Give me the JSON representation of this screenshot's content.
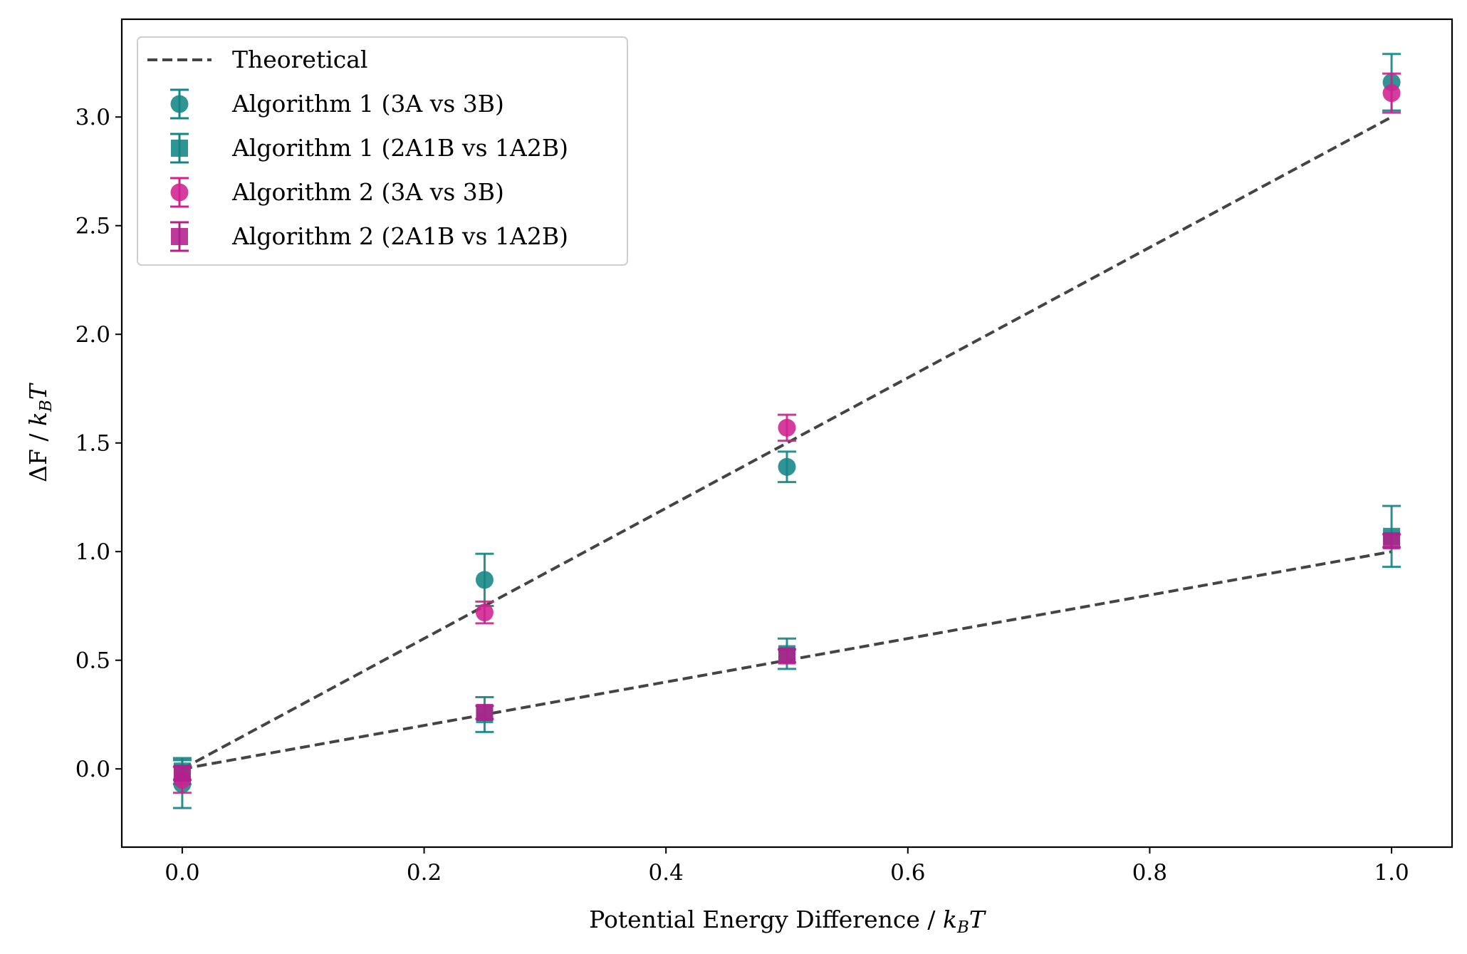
{
  "chart_data": {
    "type": "scatter",
    "xlabel": "Potential Energy Difference / k_B T",
    "ylabel": "ΔF / k_B T",
    "xlim": [
      -0.05,
      1.05
    ],
    "ylim": [
      -0.36,
      3.45
    ],
    "xticks": [
      "0.0",
      "0.2",
      "0.4",
      "0.6",
      "0.8",
      "1.0"
    ],
    "yticks": [
      "0.0",
      "0.5",
      "1.0",
      "1.5",
      "2.0",
      "2.5",
      "3.0"
    ],
    "grid": false,
    "legend_position": "top-left",
    "lines": [
      {
        "name": "Theoretical",
        "color": "#444444",
        "style": "dashed",
        "segments": [
          {
            "x": [
              0.0,
              1.0
            ],
            "y": [
              0.0,
              3.0
            ]
          },
          {
            "x": [
              0.0,
              1.0
            ],
            "y": [
              0.0,
              1.0
            ]
          }
        ]
      }
    ],
    "series": [
      {
        "name": "Algorithm 1 (3A vs 3B)",
        "marker": "circle",
        "color": "#138585",
        "x": [
          0.0,
          0.25,
          0.5,
          1.0
        ],
        "y": [
          -0.07,
          0.87,
          1.39,
          3.16
        ],
        "yerr": [
          0.11,
          0.12,
          0.07,
          0.13
        ]
      },
      {
        "name": "Algorithm 1 (2A1B vs 1A2B)",
        "marker": "square",
        "color": "#138585",
        "x": [
          0.0,
          0.25,
          0.5,
          1.0
        ],
        "y": [
          -0.01,
          0.25,
          0.53,
          1.07
        ],
        "yerr": [
          0.06,
          0.08,
          0.07,
          0.14
        ]
      },
      {
        "name": "Algorithm 2 (3A vs 3B)",
        "marker": "circle",
        "color": "#d0218f",
        "x": [
          0.0,
          0.25,
          0.5,
          1.0
        ],
        "y": [
          -0.05,
          0.72,
          1.57,
          3.11
        ],
        "yerr": [
          0.06,
          0.05,
          0.06,
          0.09
        ]
      },
      {
        "name": "Algorithm 2 (2A1B vs 1A2B)",
        "marker": "square",
        "color": "#b0208c",
        "x": [
          0.0,
          0.25,
          0.5,
          1.0
        ],
        "y": [
          -0.02,
          0.26,
          0.52,
          1.05
        ],
        "yerr": [
          0.03,
          0.03,
          0.03,
          0.03
        ]
      }
    ]
  }
}
